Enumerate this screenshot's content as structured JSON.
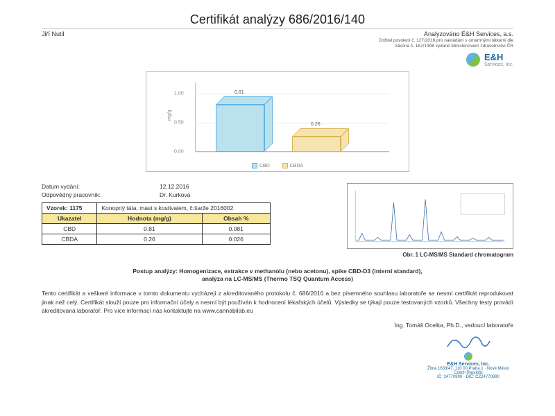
{
  "header": {
    "title": "Certifikát analýzy 686/2016/140",
    "name": "Jiří Nutil",
    "analyzed_by": "Analyzováno E&H Services, a.s.",
    "legal1": "Držitel povolení č. 127/2016 pro nakládání s omamnými látkami dle",
    "legal2": "zákona č. 167/1998 vydané Ministerstvem zdravotnictví ČR",
    "logo_text": "E&H",
    "logo_sub": "Services, Inc."
  },
  "chart": {
    "type": "3d-bar",
    "ylabel": "mg/g",
    "ylim": [
      0,
      1.2
    ],
    "yticks": [
      0.0,
      0.5,
      1.0
    ],
    "grid_color": "#e8e8e8",
    "background": "#ffffff",
    "bars": [
      {
        "name": "CBD",
        "value": 0.81,
        "fill": "#b9e1ee",
        "border": "#5fb4e0"
      },
      {
        "name": "CBDA",
        "value": 0.26,
        "fill": "#f5e4b0",
        "border": "#d9b657"
      }
    ],
    "legend": [
      {
        "label": "CBD",
        "color": "#b9e1ee",
        "border": "#5fb4e0"
      },
      {
        "label": "CBDA",
        "color": "#f5e4b0",
        "border": "#d9b657"
      }
    ]
  },
  "meta": {
    "date_label": "Datum vydání:",
    "date_value": "12.12.2016",
    "resp_label": "Odpovědný pracovník:",
    "resp_value": "Dr. Kurková"
  },
  "table": {
    "sample_label": "Vzorek:",
    "sample_id": "1175",
    "sample_desc": "Konopný táta, mast s kostivalem, č.šarže 2016002",
    "columns": [
      "Ukazatel",
      "Hodnota (mg/g)",
      "Obsah %"
    ],
    "rows": [
      [
        "CBD",
        "0.81",
        "0.081"
      ],
      [
        "CBDA",
        "0.26",
        "0.026"
      ]
    ]
  },
  "chromatogram": {
    "caption": "Obr. 1 LC-MS/MS Standard chromatogram",
    "line_color": "#3a6aa8",
    "axis_color": "#999999",
    "peaks": [
      10,
      4,
      55,
      8,
      60,
      12,
      5,
      3,
      4
    ]
  },
  "procedure": {
    "line1": "Postup analýzy: Homogenizace, extrakce v methanolu (nebo acetonu), spike CBD-D3 (interní standard),",
    "line2": "analýza na LC-MS/MS (Thermo TSQ Quantum Access)"
  },
  "disclaimer": "Tento certifikát a veškeré informace v tomto dokumentu vycházejí z akreditovaného protokolu č. 686/2016 a bez písemného souhlasu laboratoře se nesmí certifikát reprodukovat jinak než celý. Certifikát slouží pouze pro informační účely a nesmí být používán k hodnocení lékařských účelů. Výsledky se týkají pouze testovaných vzorků. Všechny testy provádí akreditovaná laboratoř. Pro více informací nás kontaktujte na www.cannabilab.eu",
  "signature": {
    "name": "Ing. Tomáš Ocelka, Ph.D., vedoucí laboratoře",
    "sig_color": "#2f72c4"
  },
  "stamp": {
    "name": "E&H Services, Inc.",
    "addr1": "Žitná 1633/47, 110 00 Praha 1 · Nové Město",
    "addr2": "Czech Republic",
    "ids": "IČ: 24770990 · DIČ: CZ24770990"
  }
}
